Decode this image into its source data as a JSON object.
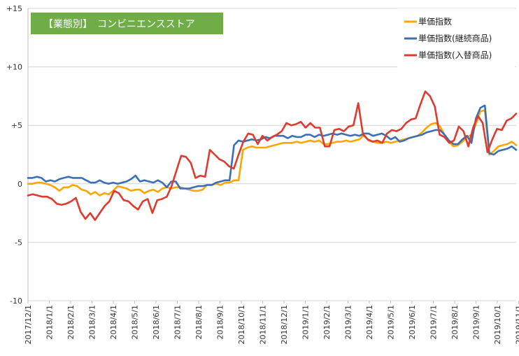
{
  "chart_data": {
    "type": "line",
    "title": "【業態別】　コンビニエンスストア",
    "banner_color": "#70ad47",
    "ylim": [
      -10,
      15
    ],
    "y_ticks": [
      {
        "value": 15,
        "label": "+15"
      },
      {
        "value": 10,
        "label": "+10"
      },
      {
        "value": 5,
        "label": "+5"
      },
      {
        "value": 0,
        "label": "0"
      },
      {
        "value": -5,
        "label": "-5"
      },
      {
        "value": -10,
        "label": "-10"
      }
    ],
    "x_ticks": [
      "2017/12/1",
      "2018/1/1",
      "2018/2/1",
      "2018/3/1",
      "2018/4/1",
      "2018/5/1",
      "2018/6/1",
      "2018/7/1",
      "2018/8/1",
      "2018/9/1",
      "2018/10/1",
      "2018/11/1",
      "2018/12/1",
      "2019/1/1",
      "2019/2/1",
      "2019/3/1",
      "2019/4/1",
      "2019/5/1",
      "2019/6/1",
      "2019/7/1",
      "2019/8/1",
      "2019/9/1",
      "2019/10/1",
      "2019/11/1"
    ],
    "gridlines": "horizontal",
    "legend_position": "top-right",
    "series": [
      {
        "name": "単価指数",
        "color": "#ffa500",
        "values": [
          0,
          0,
          0.1,
          0.1,
          0,
          -0.1,
          -0.3,
          -0.6,
          -0.3,
          -0.3,
          -0.1,
          -0.2,
          -0.5,
          -0.6,
          -0.9,
          -0.7,
          -1,
          -0.8,
          -0.9,
          -0.6,
          -0.2,
          -0.3,
          -0.4,
          -0.6,
          -0.5,
          -0.5,
          -0.8,
          -0.6,
          -0.5,
          -0.7,
          -0.4,
          -0.3,
          -0.4,
          -0.3,
          -0.3,
          -0.4,
          -0.5,
          -0.6,
          -0.6,
          -0.5,
          -0.1,
          -0.1,
          0,
          -0.1,
          0.1,
          0.1,
          0.3,
          0.3,
          2.9,
          3.1,
          3.2,
          3.1,
          3.1,
          3.1,
          3.2,
          3.3,
          3.4,
          3.5,
          3.5,
          3.5,
          3.6,
          3.5,
          3.6,
          3.7,
          3.6,
          3.7,
          3.4,
          3.4,
          3.5,
          3.6,
          3.6,
          3.7,
          3.6,
          3.7,
          3.8,
          4.2,
          3.7,
          3.6,
          3.5,
          3.5,
          3.6,
          3.5,
          3.6,
          3.7,
          3.8,
          3.9,
          4,
          4.1,
          4.4,
          4.8,
          5.1,
          5.2,
          4.9,
          4.2,
          3.6,
          3.2,
          3.3,
          3.6,
          4,
          4.2,
          5.1,
          6.2,
          6.3,
          2.5,
          2.8,
          3.2,
          3.3,
          3.4,
          3.6,
          3.3
        ]
      },
      {
        "name": "単価指数(継続商品)",
        "color": "#3a6fb7",
        "values": [
          0.5,
          0.5,
          0.6,
          0.5,
          0.2,
          0.3,
          0.2,
          0.4,
          0.5,
          0.6,
          0.5,
          0.5,
          0.5,
          0.3,
          0.1,
          0.1,
          0.3,
          0.1,
          0,
          0.1,
          0,
          0.1,
          0.2,
          0.4,
          0.7,
          0.2,
          0.3,
          0.2,
          0.1,
          0.3,
          0.1,
          -0.3,
          0.2,
          0.2,
          -0.4,
          -0.4,
          -0.4,
          -0.3,
          -0.2,
          -0.2,
          -0.1,
          -0.1,
          0.1,
          0.2,
          0.3,
          0.3,
          3.3,
          3.7,
          3.6,
          3.7,
          3.8,
          3.7,
          3.8,
          4,
          3.9,
          4.1,
          4.1,
          4.1,
          3.9,
          4.1,
          4,
          4,
          4.2,
          4.2,
          4,
          4.2,
          4.1,
          4.2,
          4.3,
          4.2,
          4.3,
          4.2,
          4.1,
          4.2,
          4.1,
          4.3,
          4.3,
          4.1,
          4.2,
          4.3,
          4.1,
          3.8,
          4,
          3.6,
          3.7,
          3.9,
          4,
          4.1,
          4.2,
          4.4,
          4.5,
          4.6,
          4.6,
          4.2,
          3.7,
          3.4,
          3.4,
          3.8,
          4.1,
          3.5,
          5.6,
          6.5,
          6.7,
          2.6,
          2.5,
          2.8,
          2.9,
          3,
          3.2,
          2.9
        ]
      },
      {
        "name": "単価指数(入替商品)",
        "color": "#e03a2f",
        "values": [
          -1,
          -0.9,
          -1,
          -1.1,
          -1.1,
          -1.3,
          -1.7,
          -1.8,
          -1.7,
          -1.5,
          -1.2,
          -2.4,
          -3,
          -2.5,
          -3.1,
          -2.5,
          -1.9,
          -1.5,
          -0.6,
          -0.8,
          -1.4,
          -1.5,
          -1.9,
          -2.2,
          -1.5,
          -1.3,
          -2.5,
          -1.4,
          -1.3,
          -1.1,
          -0.2,
          1.1,
          2.4,
          2.3,
          1.8,
          0.5,
          0.7,
          0.6,
          2.9,
          2.5,
          2.1,
          1.9,
          1.5,
          1.3,
          2.5,
          3.6,
          4.3,
          4.2,
          3.4,
          4.1,
          3.7,
          4,
          4.2,
          4.5,
          5.2,
          5,
          5.1,
          5.3,
          4.8,
          5.2,
          4.8,
          4.8,
          3.2,
          3.2,
          4.6,
          4.7,
          4.5,
          4.9,
          5,
          6.9,
          4.2,
          3.8,
          3.6,
          3.7,
          3.5,
          4.3,
          4.6,
          4.5,
          4.7,
          5.2,
          5.5,
          5.6,
          6.8,
          7.9,
          7.5,
          6.6,
          4.2,
          4,
          3.5,
          3.7,
          4.9,
          4.5,
          3.2,
          4.8,
          5.8,
          5.2,
          2.7,
          3.8,
          4.7,
          4.6,
          5.4,
          5.6,
          6
        ]
      }
    ]
  }
}
